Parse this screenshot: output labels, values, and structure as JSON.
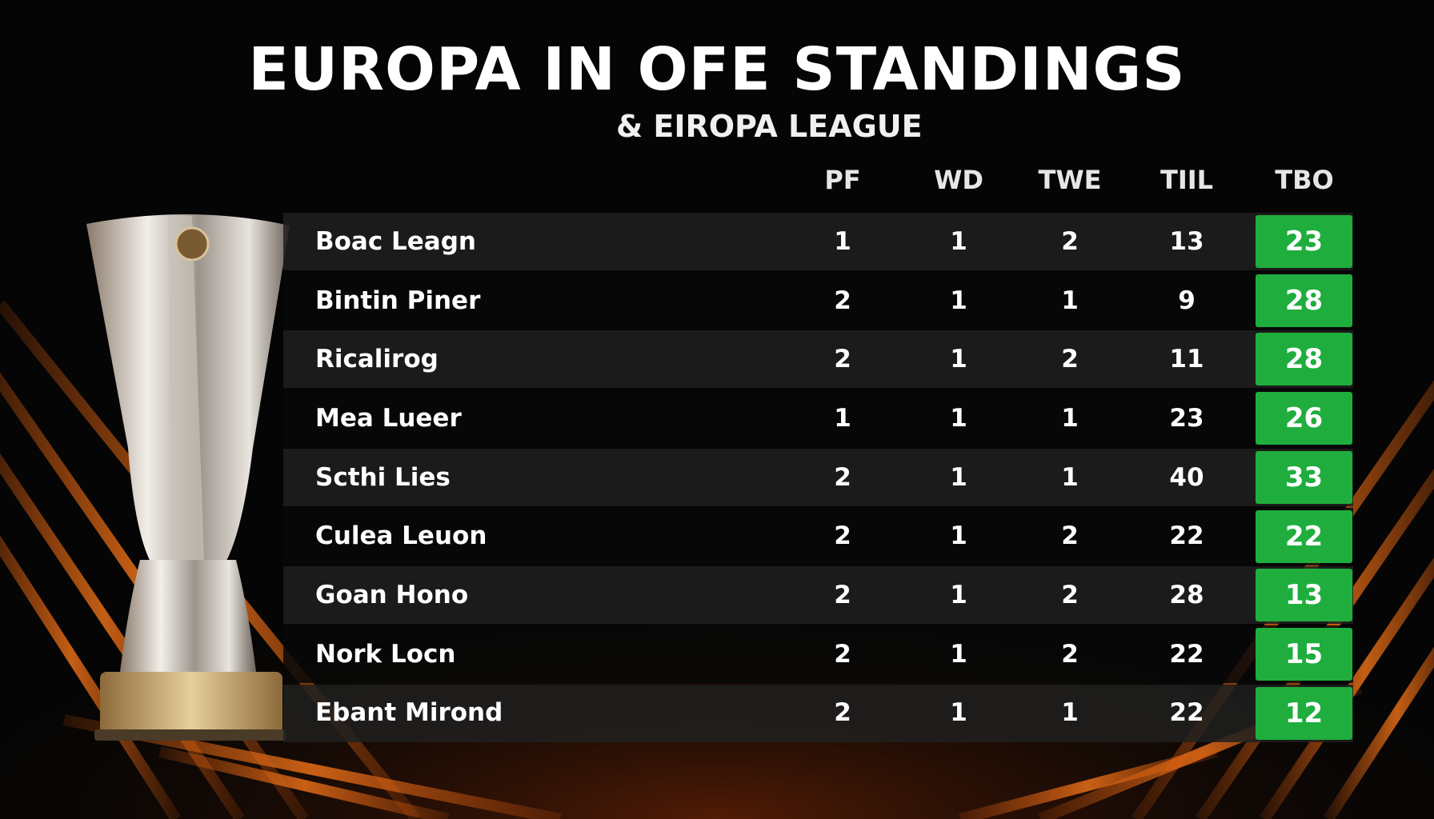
{
  "header": {
    "title": "EUROPA IN OFE STANDINGS",
    "subtitle": "& EIROPA LEAGUE"
  },
  "table": {
    "columns": [
      "PF",
      "WD",
      "TWE",
      "TIIL",
      "TBO"
    ],
    "rows": [
      [
        "Boac Leagn",
        1,
        1,
        2,
        13,
        23
      ],
      [
        "Bintin Piner",
        2,
        1,
        1,
        9,
        28
      ],
      [
        "Ricalirog",
        2,
        1,
        2,
        11,
        28
      ],
      [
        "Mea Lueer",
        1,
        1,
        1,
        23,
        26
      ],
      [
        "Scthi Lies",
        2,
        1,
        1,
        40,
        33
      ],
      [
        "Culea Leuon",
        2,
        1,
        2,
        22,
        22
      ],
      [
        "Goan Hono",
        2,
        1,
        2,
        28,
        13
      ],
      [
        "Nork Locn",
        2,
        1,
        2,
        22,
        15
      ],
      [
        "Ebant Mirond",
        2,
        1,
        1,
        22,
        12
      ]
    ]
  }
}
